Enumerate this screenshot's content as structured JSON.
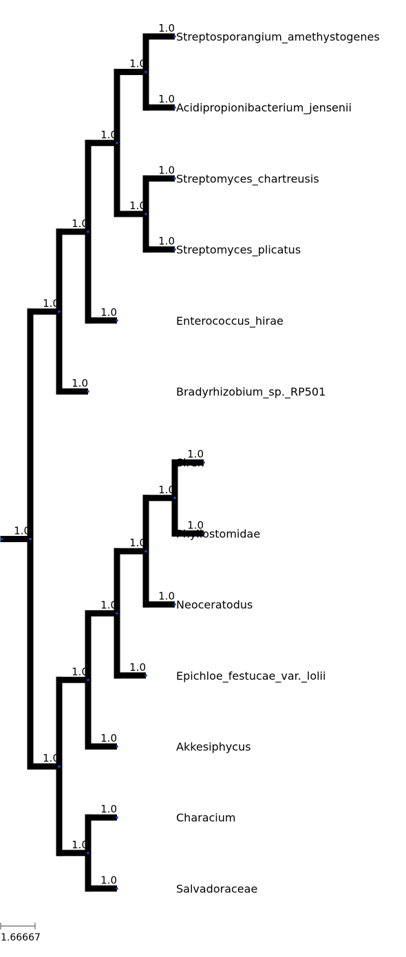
{
  "tree": {
    "branch_color": "#000000",
    "node_dot_color": "#1f3fbf",
    "taxa": [
      "Streptosporangium_amethystogenes",
      "Acidipropionibacterium_jensenii",
      "Streptomyces_chartreusis",
      "Streptomyces_plicatus",
      "Enterococcus_hirae",
      "Bradyrhizobium_sp._RP501",
      "Siren",
      "Phyllostomidae",
      "Neoceratodus",
      "Epichloe_festucae_var._lolii",
      "Akkesiphycus",
      "Characium",
      "Salvadoraceae"
    ],
    "support_label": "1.0",
    "newick_topology": "((((((Streptosporangium_amethystogenes,Acidipropionibacterium_jensenii),(Streptomyces_chartreusis,Streptomyces_plicatus)),Enterococcus_hirae),Bradyrhizobium_sp._RP501),(((((Siren,Phyllostomidae),Neoceratodus),Epichloe_festucae_var._lolii),Akkesiphycus),(Characium,Salvadoraceae))));"
  },
  "scale_bar": {
    "label": "1.66667"
  }
}
